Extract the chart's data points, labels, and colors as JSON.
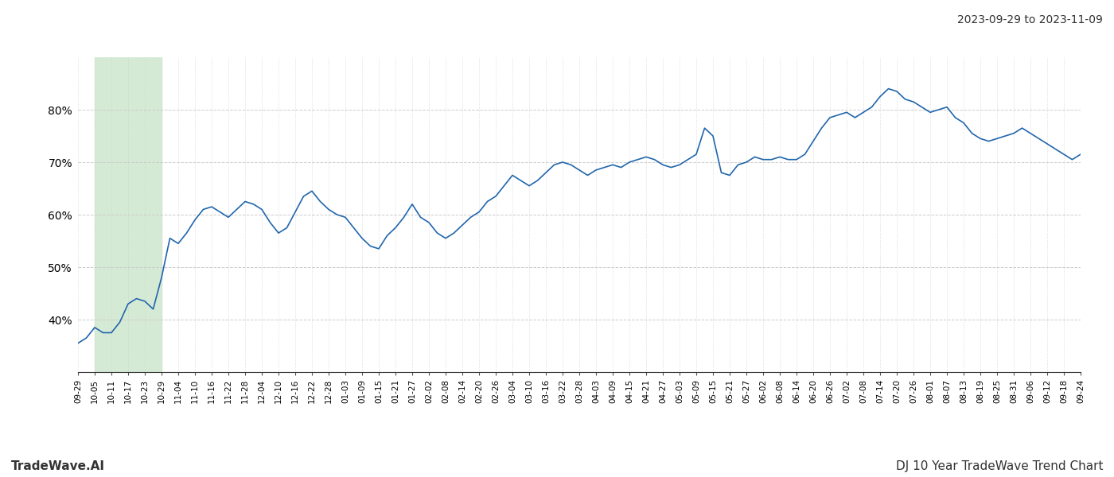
{
  "title_top_right": "2023-09-29 to 2023-11-09",
  "footer_left": "TradeWave.AI",
  "footer_right": "DJ 10 Year TradeWave Trend Chart",
  "line_color": "#2166ac",
  "shade_color": "#d5ead5",
  "background_color": "#ffffff",
  "grid_color": "#cccccc",
  "ylim": [
    30,
    90
  ],
  "yticks": [
    40,
    50,
    60,
    70,
    80
  ],
  "x_labels": [
    "09-29",
    "10-05",
    "10-11",
    "10-17",
    "10-23",
    "10-29",
    "11-04",
    "11-10",
    "11-16",
    "11-22",
    "11-28",
    "12-04",
    "12-10",
    "12-16",
    "12-22",
    "12-28",
    "01-03",
    "01-09",
    "01-15",
    "01-21",
    "01-27",
    "02-02",
    "02-08",
    "02-14",
    "02-20",
    "02-26",
    "03-04",
    "03-10",
    "03-16",
    "03-22",
    "03-28",
    "04-03",
    "04-09",
    "04-15",
    "04-21",
    "04-27",
    "05-03",
    "05-09",
    "05-15",
    "05-21",
    "05-27",
    "06-02",
    "06-08",
    "06-14",
    "06-20",
    "06-26",
    "07-02",
    "07-08",
    "07-14",
    "07-20",
    "07-26",
    "08-01",
    "08-07",
    "08-13",
    "08-19",
    "08-25",
    "08-31",
    "09-06",
    "09-12",
    "09-18",
    "09-24"
  ],
  "shade_label_start": "10-05",
  "shade_label_end": "10-29",
  "y_values": [
    35.5,
    36.5,
    38.5,
    37.5,
    37.5,
    39.5,
    43.0,
    44.0,
    43.5,
    42.0,
    48.0,
    55.5,
    54.5,
    56.5,
    59.0,
    61.0,
    61.5,
    60.5,
    59.5,
    61.0,
    62.5,
    62.0,
    61.0,
    58.5,
    56.5,
    57.5,
    60.5,
    63.5,
    64.5,
    62.5,
    61.0,
    60.0,
    59.5,
    57.5,
    55.5,
    54.0,
    53.5,
    56.0,
    57.5,
    59.5,
    62.0,
    59.5,
    58.5,
    56.5,
    55.5,
    56.5,
    58.0,
    59.5,
    60.5,
    62.5,
    63.5,
    65.5,
    67.5,
    66.5,
    65.5,
    66.5,
    68.0,
    69.5,
    70.0,
    69.5,
    68.5,
    67.5,
    68.5,
    69.0,
    69.5,
    69.0,
    70.0,
    70.5,
    71.0,
    70.5,
    69.5,
    69.0,
    69.5,
    70.5,
    71.5,
    76.5,
    75.0,
    68.0,
    67.5,
    69.5,
    70.0,
    71.0,
    70.5,
    70.5,
    71.0,
    70.5,
    70.5,
    71.5,
    74.0,
    76.5,
    78.5,
    79.0,
    79.5,
    78.5,
    79.5,
    80.5,
    82.5,
    84.0,
    83.5,
    82.0,
    81.5,
    80.5,
    79.5,
    80.0,
    80.5,
    78.5,
    77.5,
    75.5,
    74.5,
    74.0,
    74.5,
    75.0,
    75.5,
    76.5,
    75.5,
    74.5,
    73.5,
    72.5,
    71.5,
    70.5,
    71.5
  ]
}
